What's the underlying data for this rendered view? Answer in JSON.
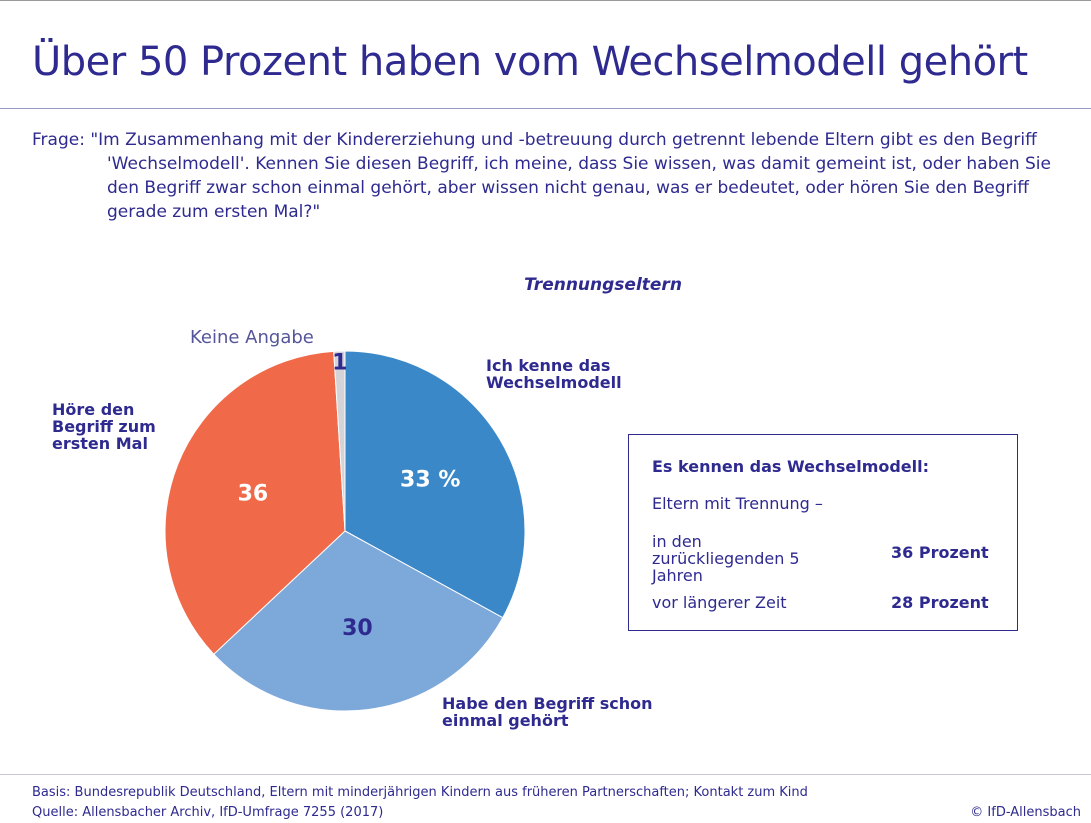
{
  "title": "Über 50 Prozent haben vom Wechselmodell gehört",
  "question": "Frage: \"Im Zusammenhang mit der Kindererziehung und -betreuung durch getrennt lebende Eltern gibt es den Begriff 'Wechselmodell'. Kennen Sie diesen Begriff, ich meine, dass Sie wissen, was damit gemeint ist, oder haben Sie den Begriff zwar schon einmal gehört, aber wissen nicht genau, was er bedeutet, oder hören Sie den Begriff gerade zum ersten Mal?\"",
  "chart_data": {
    "type": "pie",
    "title": "Trennungseltern",
    "categories": [
      "Ich kenne das Wechselmodell",
      "Habe den Begriff schon einmal gehört",
      "Höre den Begriff zum ersten Mal",
      "Keine Angabe"
    ],
    "values": [
      33,
      30,
      36,
      1
    ],
    "value_labels": [
      "33 %",
      "30",
      "36",
      "1"
    ],
    "colors": [
      "#3a88c8",
      "#7da8da",
      "#f06a4a",
      "#d4d4d8"
    ],
    "label_colors": [
      "#ffffff",
      "#2e2a8f",
      "#ffffff",
      "#2e2a8f"
    ]
  },
  "info_box": {
    "title": "Es kennen das Wechselmodell:",
    "subtitle": "Eltern mit Trennung –",
    "rows": [
      {
        "label": "in den zurückliegenden 5 Jahren",
        "value": "36 Prozent"
      },
      {
        "label": "vor längerer Zeit",
        "value": "28 Prozent"
      }
    ]
  },
  "footer": {
    "basis": "Basis: Bundesrepublik Deutschland, Eltern mit minderjährigen Kindern aus früheren Partnerschaften; Kontakt zum Kind",
    "source": "Quelle: Allensbacher Archiv, IfD-Umfrage 7255 (2017)",
    "copyright": "© IfD-Allensbach"
  }
}
